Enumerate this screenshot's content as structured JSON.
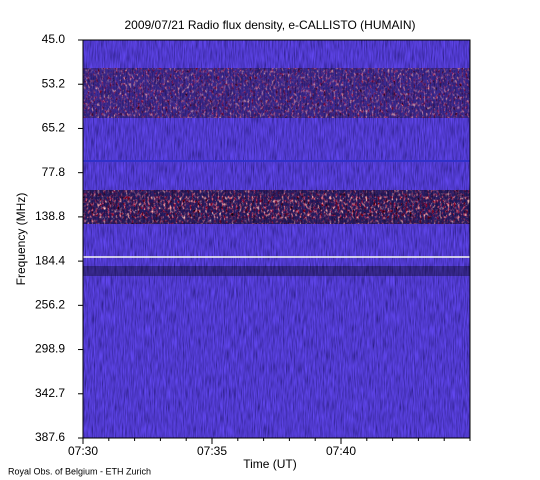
{
  "chart_data": {
    "type": "spectrogram",
    "title": "2009/07/21  Radio flux density, e-CALLISTO (HUMAIN)",
    "x_label": "Time (UT)",
    "y_label": "Frequency (MHz)",
    "footnote": "Royal Obs. of Belgium - ETH Zurich",
    "xlim": [
      "07:30",
      "07:45"
    ],
    "xticks": [
      "07:30",
      "07:35",
      "07:40"
    ],
    "ylim": [
      45,
      387.6
    ],
    "yticks": [
      {
        "value": 45,
        "label": "45.0"
      },
      53.2,
      65.2,
      77.8,
      138.8,
      184.4,
      256.2,
      298.9,
      342.7,
      387.6
    ]
  }
}
